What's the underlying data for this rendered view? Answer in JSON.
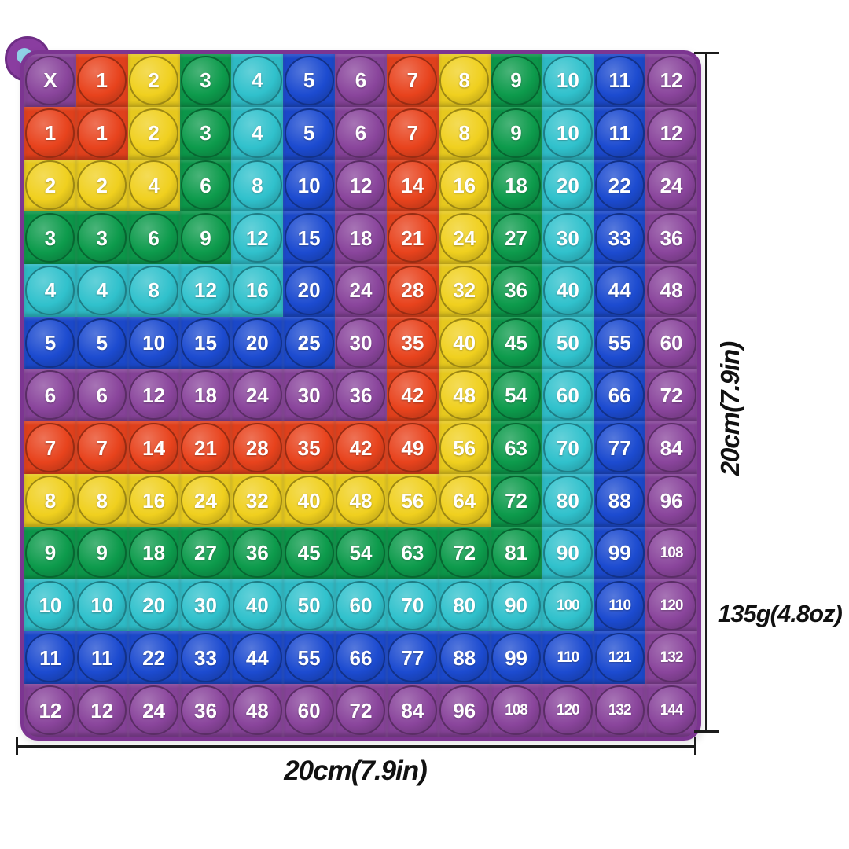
{
  "product": {
    "name": "rainbow pop-it multiplication table",
    "frame_color": "#8a3da0",
    "frame_edge_color": "#7c3591",
    "tab_hole_color": "#8fd0e6",
    "number_color": "#ffffff",
    "background_color": "#ffffff"
  },
  "palette": {
    "order": [
      "purple",
      "red",
      "yellow",
      "green",
      "teal",
      "blue"
    ],
    "purple": "#8a459c",
    "red": "#e8431d",
    "yellow": "#f0d01f",
    "green": "#0d9b4c",
    "teal": "#30c1cc",
    "blue": "#1c4bd0"
  },
  "grid": {
    "rows": [
      [
        "X",
        "1",
        "2",
        "3",
        "4",
        "5",
        "6",
        "7",
        "8",
        "9",
        "10",
        "11",
        "12"
      ],
      [
        "1",
        "1",
        "2",
        "3",
        "4",
        "5",
        "6",
        "7",
        "8",
        "9",
        "10",
        "11",
        "12"
      ],
      [
        "2",
        "2",
        "4",
        "6",
        "8",
        "10",
        "12",
        "14",
        "16",
        "18",
        "20",
        "22",
        "24"
      ],
      [
        "3",
        "3",
        "6",
        "9",
        "12",
        "15",
        "18",
        "21",
        "24",
        "27",
        "30",
        "33",
        "36"
      ],
      [
        "4",
        "4",
        "8",
        "12",
        "16",
        "20",
        "24",
        "28",
        "32",
        "36",
        "40",
        "44",
        "48"
      ],
      [
        "5",
        "5",
        "10",
        "15",
        "20",
        "25",
        "30",
        "35",
        "40",
        "45",
        "50",
        "55",
        "60"
      ],
      [
        "6",
        "6",
        "12",
        "18",
        "24",
        "30",
        "36",
        "42",
        "48",
        "54",
        "60",
        "66",
        "72"
      ],
      [
        "7",
        "7",
        "14",
        "21",
        "28",
        "35",
        "42",
        "49",
        "56",
        "63",
        "70",
        "77",
        "84"
      ],
      [
        "8",
        "8",
        "16",
        "24",
        "32",
        "40",
        "48",
        "56",
        "64",
        "72",
        "80",
        "88",
        "96"
      ],
      [
        "9",
        "9",
        "18",
        "27",
        "36",
        "45",
        "54",
        "63",
        "72",
        "81",
        "90",
        "99",
        "108"
      ],
      [
        "10",
        "10",
        "20",
        "30",
        "40",
        "50",
        "60",
        "70",
        "80",
        "90",
        "100",
        "110",
        "120"
      ],
      [
        "11",
        "11",
        "22",
        "33",
        "44",
        "55",
        "66",
        "77",
        "88",
        "99",
        "110",
        "121",
        "132"
      ],
      [
        "12",
        "12",
        "24",
        "36",
        "48",
        "60",
        "72",
        "84",
        "96",
        "108",
        "120",
        "132",
        "144"
      ]
    ]
  },
  "annotations": {
    "height_label": "20cm(7.9in)",
    "width_label": "20cm(7.9in)",
    "weight_label": "135g(4.8oz)",
    "line_color": "#1b1b1b",
    "text_color": "#111111"
  }
}
